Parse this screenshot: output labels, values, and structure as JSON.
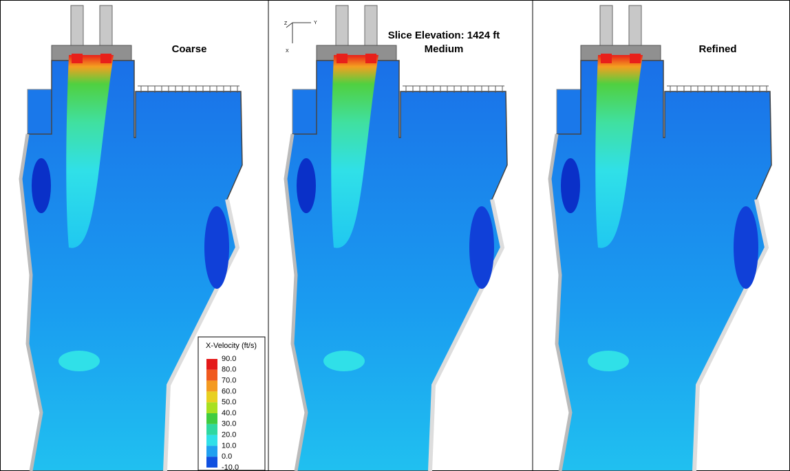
{
  "panels": [
    {
      "title": "Coarse"
    },
    {
      "subtitle": "Slice Elevation: 1424 ft",
      "title": "Medium"
    },
    {
      "title": "Refined"
    }
  ],
  "axes_triad": {
    "z": "Z",
    "y": "Y",
    "x": "X"
  },
  "legend": {
    "title": "X-Velocity (ft/s)",
    "labels": [
      "90.0",
      "80.0",
      "70.0",
      "60.0",
      "50.0",
      "40.0",
      "30.0",
      "20.0",
      "10.0",
      "0.0",
      "-10.0"
    ]
  }
}
